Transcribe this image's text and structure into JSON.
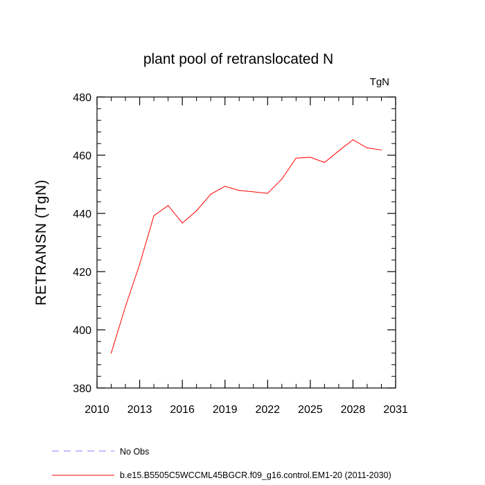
{
  "chart_data": {
    "type": "line",
    "title": "plant pool of retranslocated N",
    "units": "TgN",
    "xlabel": "",
    "ylabel": "RETRANSN  (TgN)",
    "xlim": [
      2010,
      2031
    ],
    "ylim": [
      380,
      480
    ],
    "x_ticks": [
      2010,
      2013,
      2016,
      2019,
      2022,
      2025,
      2028,
      2031
    ],
    "y_ticks": [
      380,
      400,
      420,
      440,
      460,
      480
    ],
    "x_tick_labels": [
      "2010",
      "2013",
      "2016",
      "2019",
      "2022",
      "2025",
      "2028",
      "2031"
    ],
    "y_tick_labels": [
      "380",
      "400",
      "420",
      "440",
      "460",
      "480"
    ],
    "grid": false,
    "series": [
      {
        "name": "b.e15.B5505C5WCCML45BGCR.f09_g16.control.EM1-20 (2011-2030)",
        "color": "#ff0000",
        "style": "solid",
        "x": [
          2011,
          2012,
          2013,
          2014,
          2015,
          2016,
          2017,
          2018,
          2019,
          2020,
          2021,
          2022,
          2023,
          2024,
          2025,
          2026,
          2027,
          2028,
          2029,
          2030
        ],
        "y": [
          392,
          408,
          422.5,
          439.2,
          442.7,
          436.7,
          440.9,
          446.6,
          449.3,
          447.9,
          447.4,
          446.9,
          451.8,
          459.0,
          459.3,
          457.5,
          461.5,
          465.3,
          462.5,
          461.8
        ]
      }
    ],
    "legend": [
      {
        "label": "No Obs",
        "color": "#8080ff",
        "style": "dashed"
      },
      {
        "label": "b.e15.B5505C5WCCML45BGCR.f09_g16.control.EM1-20 (2011-2030)",
        "color": "#ff0000",
        "style": "solid"
      }
    ],
    "legend_position": "bottom-left"
  }
}
